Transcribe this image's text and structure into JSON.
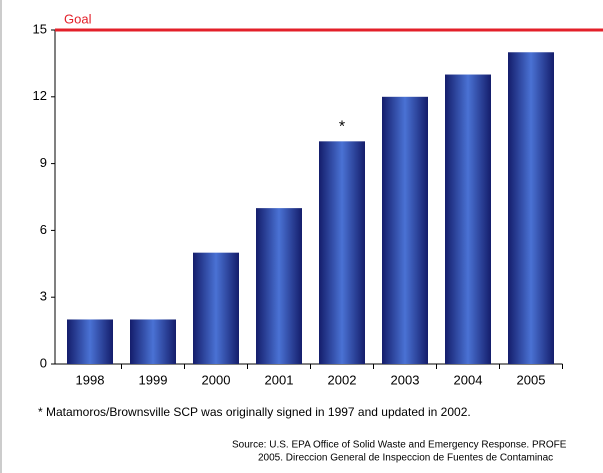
{
  "chart_data": {
    "type": "bar",
    "categories": [
      "1998",
      "1999",
      "2000",
      "2001",
      "2002",
      "2003",
      "2004",
      "2005"
    ],
    "values": [
      2,
      2,
      5,
      7,
      10,
      12,
      13,
      14
    ],
    "color": "#2c3f9e",
    "ylim": [
      0,
      15
    ],
    "yticks": [
      0,
      3,
      6,
      9,
      12,
      15
    ],
    "goal": {
      "label": "Goal",
      "value": 15,
      "color": "#e3202a"
    },
    "annotations": [
      {
        "text": "*",
        "category": "2002"
      }
    ],
    "footnote": "* Matamoros/Brownsville SCP was originally signed in 1997 and updated in 2002.",
    "source": [
      "Source:  U.S. EPA Office of Solid Waste and Emergency Response.  PROFE",
      "2005. Direccion General de Inspeccion de Fuentes de Contaminac"
    ]
  }
}
